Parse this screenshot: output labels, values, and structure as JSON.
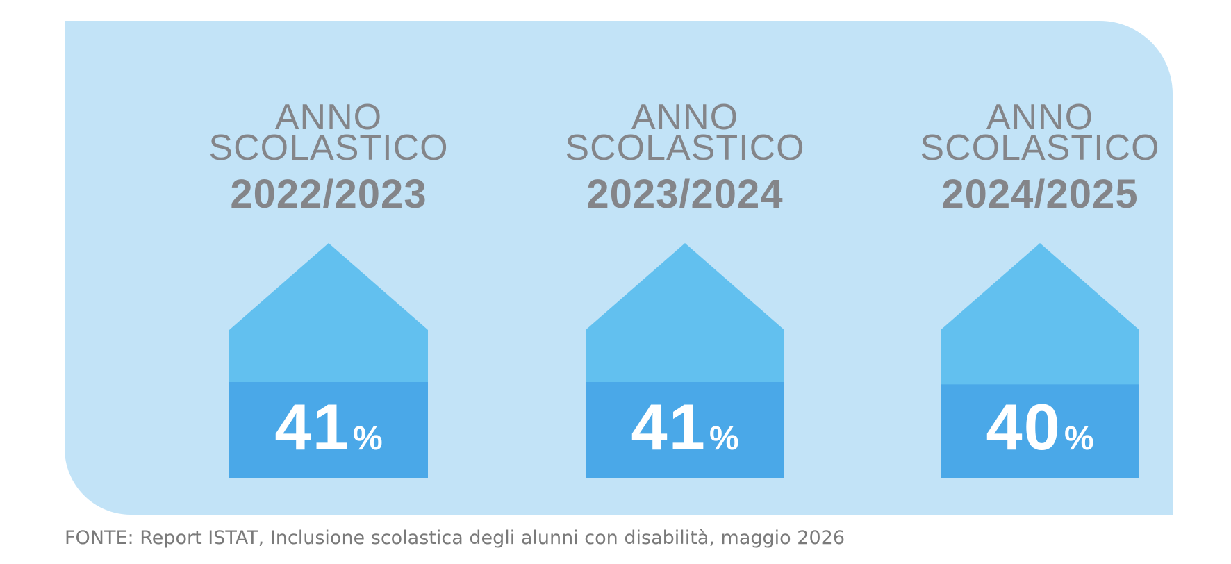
{
  "colors": {
    "panel": "#c2e3f7",
    "roof": "#62c0ef",
    "fill": "#4aa8e8",
    "heading_text": "#848589",
    "value_text": "#ffffff",
    "source_text": "#7a7a7a"
  },
  "chart_data": {
    "type": "bar",
    "categories": [
      "2022/2023",
      "2023/2024",
      "2024/2025"
    ],
    "values": [
      41,
      41,
      40
    ],
    "unit": "%",
    "ylim": [
      0,
      100
    ],
    "items": [
      {
        "line1": "ANNO",
        "line2": "SCOLASTICO",
        "year": "2022/2023",
        "value": 41,
        "value_label": "41",
        "unit": "%"
      },
      {
        "line1": "ANNO",
        "line2": "SCOLASTICO",
        "year": "2023/2024",
        "value": 41,
        "value_label": "41",
        "unit": "%"
      },
      {
        "line1": "ANNO",
        "line2": "SCOLASTICO",
        "year": "2024/2025",
        "value": 40,
        "value_label": "40",
        "unit": "%"
      }
    ]
  },
  "source": "FONTE: Report ISTAT, Inclusione scolastica degli alunni con disabilità, maggio 2026"
}
